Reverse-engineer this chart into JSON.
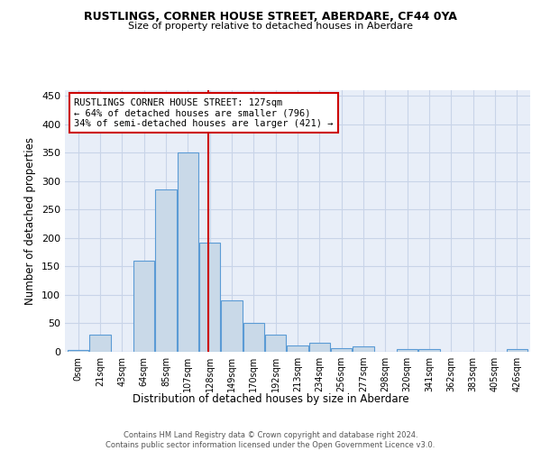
{
  "title": "RUSTLINGS, CORNER HOUSE STREET, ABERDARE, CF44 0YA",
  "subtitle": "Size of property relative to detached houses in Aberdare",
  "xlabel": "Distribution of detached houses by size in Aberdare",
  "ylabel": "Number of detached properties",
  "bin_labels": [
    "0sqm",
    "21sqm",
    "43sqm",
    "64sqm",
    "85sqm",
    "107sqm",
    "128sqm",
    "149sqm",
    "170sqm",
    "192sqm",
    "213sqm",
    "234sqm",
    "256sqm",
    "277sqm",
    "298sqm",
    "320sqm",
    "341sqm",
    "362sqm",
    "383sqm",
    "405sqm",
    "426sqm"
  ],
  "bar_heights": [
    3,
    30,
    0,
    160,
    285,
    350,
    192,
    90,
    50,
    30,
    11,
    16,
    7,
    10,
    0,
    5,
    5,
    0,
    0,
    0,
    5
  ],
  "bar_color": "#c9d9e8",
  "bar_edgecolor": "#5b9bd5",
  "vline_x": 5.95,
  "vline_color": "#cc0000",
  "annotation_text": "RUSTLINGS CORNER HOUSE STREET: 127sqm\n← 64% of detached houses are smaller (796)\n34% of semi-detached houses are larger (421) →",
  "annotation_box_color": "white",
  "annotation_box_edgecolor": "#cc0000",
  "ylim": [
    0,
    460
  ],
  "yticks": [
    0,
    50,
    100,
    150,
    200,
    250,
    300,
    350,
    400,
    450
  ],
  "footer_text": "Contains HM Land Registry data © Crown copyright and database right 2024.\nContains public sector information licensed under the Open Government Licence v3.0.",
  "background_color": "#e8eef8",
  "grid_color": "#c8d4e8",
  "fig_width": 6.0,
  "fig_height": 5.0,
  "dpi": 100
}
